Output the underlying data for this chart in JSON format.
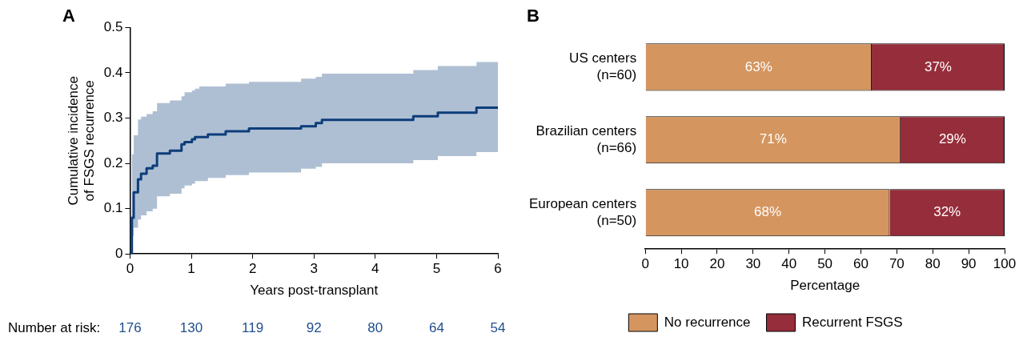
{
  "chart_data": [
    {
      "type": "step",
      "title": "A",
      "xlabel": "Years post-transplant",
      "ylabel": "Cumulative incidence of FSGS recurrence",
      "xlim": [
        0,
        6
      ],
      "xticks": [
        0,
        1,
        2,
        3,
        4,
        5,
        6
      ],
      "ylim": [
        0,
        0.5
      ],
      "yticks": [
        0,
        0.1,
        0.2,
        0.3,
        0.4,
        0.5
      ],
      "grid": false,
      "legend": false,
      "x": [
        0,
        0.03,
        0.06,
        0.13,
        0.18,
        0.27,
        0.37,
        0.44,
        0.65,
        0.84,
        0.89,
        1.01,
        1.06,
        1.13,
        1.27,
        1.56,
        1.94,
        2.79,
        3.03,
        3.13,
        4.62,
        5.02,
        5.65,
        6
      ],
      "series": [
        {
          "color": "#0d3d7a",
          "values": [
            0,
            0.08,
            0.136,
            0.165,
            0.177,
            0.189,
            0.195,
            0.222,
            0.228,
            0.242,
            0.247,
            0.253,
            0.258,
            0.258,
            0.264,
            0.271,
            0.277,
            0.282,
            0.289,
            0.296,
            0.304,
            0.312,
            0.323,
            0.323
          ],
          "lower": [
            0,
            0.04,
            0.058,
            0.076,
            0.085,
            0.094,
            0.1,
            0.127,
            0.133,
            0.145,
            0.151,
            0.155,
            0.161,
            0.161,
            0.168,
            0.174,
            0.18,
            0.188,
            0.192,
            0.2,
            0.207,
            0.216,
            0.225,
            0.225
          ],
          "upper": [
            0,
            0.22,
            0.262,
            0.297,
            0.303,
            0.309,
            0.315,
            0.333,
            0.339,
            0.348,
            0.357,
            0.361,
            0.365,
            0.37,
            0.37,
            0.376,
            0.38,
            0.387,
            0.391,
            0.398,
            0.406,
            0.415,
            0.424,
            0.424
          ]
        }
      ],
      "annotations": [
        "Number at risk:",
        "176",
        "130",
        "119",
        "92",
        "80",
        "64",
        "54"
      ]
    },
    {
      "type": "bar",
      "title": "B",
      "orientation": "horizontal",
      "stacked": true,
      "xlabel": "Percentage",
      "xlim": [
        0,
        100
      ],
      "xticks": [
        0,
        10,
        20,
        30,
        40,
        50,
        60,
        70,
        80,
        90,
        100
      ],
      "grid": false,
      "legend": "bottom",
      "categories": [
        "US centers (n=60)",
        "Brazilian centers (n=66)",
        "European centers (n=50)"
      ],
      "series": [
        {
          "name": "No recurrence",
          "color": "#d4955f",
          "values": [
            63,
            71,
            68
          ],
          "value_labels": [
            "63%",
            "71%",
            "68%"
          ]
        },
        {
          "name": "Recurrent FSGS",
          "color": "#952d3a",
          "values": [
            37,
            29,
            32
          ],
          "value_labels": [
            "37%",
            "29%",
            "32%"
          ]
        }
      ]
    }
  ]
}
